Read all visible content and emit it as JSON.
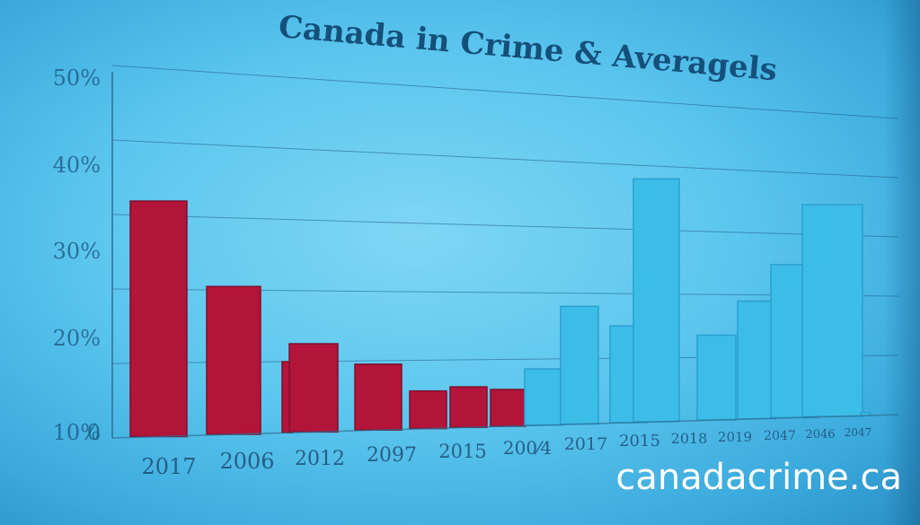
{
  "chart_data": {
    "type": "bar",
    "title": "Canada in Crime & Averagels",
    "y_ticks": [
      "50%",
      "40%",
      "30%",
      "20%",
      "10%",
      "0"
    ],
    "categories": [
      "2017",
      "2006",
      "",
      "2012",
      "2097",
      "",
      "2015",
      "",
      "200⁄4",
      "2017",
      "",
      "2015",
      "2018",
      "2019",
      "2047",
      "2046",
      "2047"
    ],
    "values": [
      32.0,
      20.5,
      10.0,
      12.5,
      9.5,
      5.5,
      6.0,
      5.5,
      8.5,
      18.0,
      15.0,
      38.0,
      13.5,
      19.0,
      25.0,
      35.0,
      0.5
    ],
    "bar_colors": [
      "#b3143a",
      "#b3143a",
      "#b3143a",
      "#b3143a",
      "#b3143a",
      "#b3143a",
      "#b3143a",
      "#b3143a",
      "#3cbde8",
      "#3cbde8",
      "#3cbde8",
      "#3cbde8",
      "#3cbde8",
      "#3cbde8",
      "#3cbde8",
      "#3cbde8",
      "#3cbde8"
    ],
    "ylim": [
      0,
      50
    ],
    "grid": true,
    "xlabel": "",
    "ylabel": ""
  },
  "watermark": "canadacrime.ca",
  "colors": {
    "red_bar": "#b3143a",
    "blue_bar": "#3cbde8",
    "text": "#14507a"
  }
}
